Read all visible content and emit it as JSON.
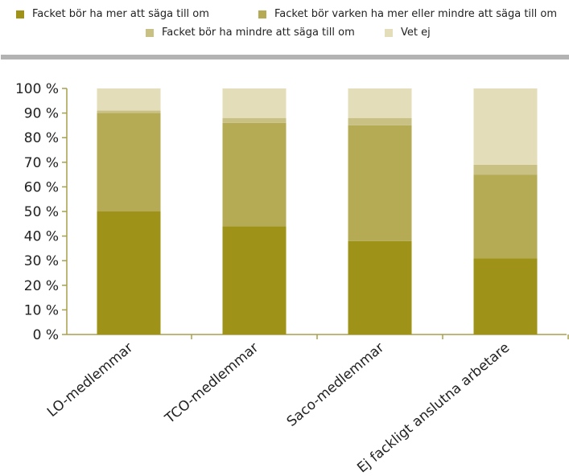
{
  "legend": {
    "items": [
      {
        "label": "Facket bör ha mer att säga till om",
        "color": "#9e9318"
      },
      {
        "label": "Facket bör varken ha mer eller mindre att säga till om",
        "color": "#b5ab54"
      },
      {
        "label": "Facket bör ha mindre att säga till om",
        "color": "#c9c183"
      },
      {
        "label": "Vet ej",
        "color": "#e3ddb9"
      }
    ]
  },
  "chart_data": {
    "type": "bar",
    "stacked": true,
    "categories": [
      "LO-medlemmar",
      "TCO-medlemmar",
      "Saco-medlemmar",
      "Ej fackligt anslutna arbetare"
    ],
    "series": [
      {
        "name": "Facket bör ha mer att säga till om",
        "color": "#9e9318",
        "values": [
          50,
          44,
          38,
          31
        ]
      },
      {
        "name": "Facket bör varken ha mer eller mindre att säga till om",
        "color": "#b5ab54",
        "values": [
          40,
          42,
          47,
          34
        ]
      },
      {
        "name": "Facket bör ha mindre att säga till om",
        "color": "#c9c183",
        "values": [
          1,
          2,
          3,
          4
        ]
      },
      {
        "name": "Vet ej",
        "color": "#e3ddb9",
        "values": [
          9,
          12,
          12,
          31
        ]
      }
    ],
    "ylim": [
      0,
      100
    ],
    "yticks": [
      0,
      10,
      20,
      30,
      40,
      50,
      60,
      70,
      80,
      90,
      100
    ],
    "ytick_labels": [
      "0 %",
      "10 %",
      "20 %",
      "30 %",
      "40 %",
      "50 %",
      "60 %",
      "70 %",
      "80 %",
      "90 %",
      "100 %"
    ],
    "title": "",
    "xlabel": "",
    "ylabel": "",
    "grid": false,
    "legend_position": "top"
  }
}
